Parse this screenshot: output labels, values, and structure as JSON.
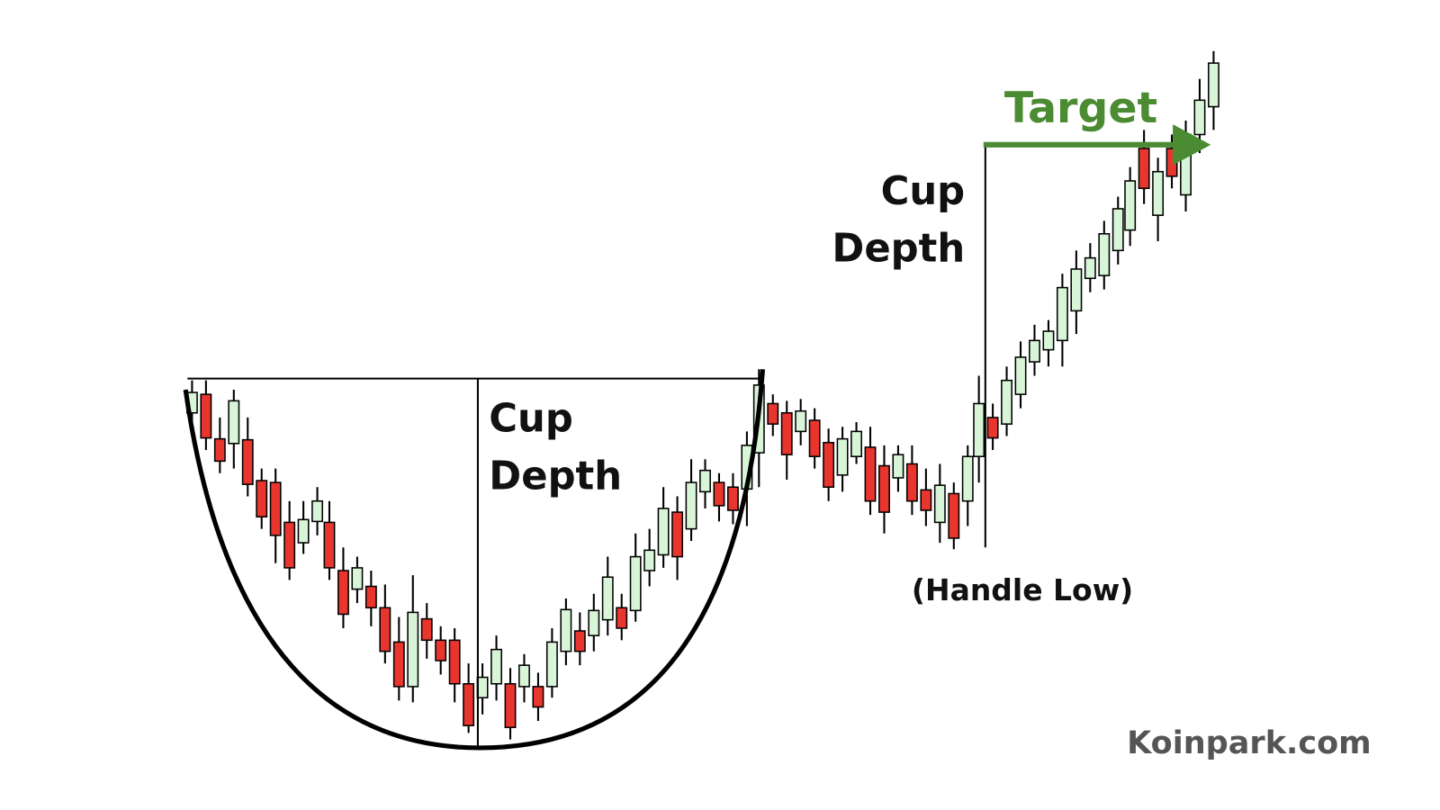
{
  "annotations": {
    "target": "Target",
    "cup_depth_left": [
      "Cup",
      "Depth"
    ],
    "cup_depth_right": [
      "Cup",
      "Depth"
    ],
    "handle_low": "(Handle Low)",
    "watermark": "Koinpark.com"
  }
}
